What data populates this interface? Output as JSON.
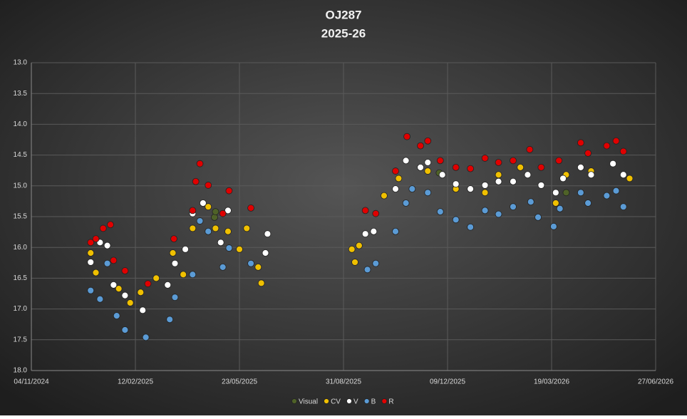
{
  "chart_data": {
    "type": "scatter",
    "title": "OJ287",
    "subtitle": "2025-26",
    "y_inverted": true,
    "grid": true,
    "legend": "bottom",
    "xlim": [
      "2024-11-04",
      "2026-06-27"
    ],
    "xticks": [
      {
        "value": "2024-11-04",
        "label": "04/11/2024"
      },
      {
        "value": "2025-02-12",
        "label": "12/02/2025"
      },
      {
        "value": "2025-05-23",
        "label": "23/05/2025"
      },
      {
        "value": "2025-08-31",
        "label": "31/08/2025"
      },
      {
        "value": "2025-12-09",
        "label": "09/12/2025"
      },
      {
        "value": "2026-03-19",
        "label": "19/03/2026"
      },
      {
        "value": "2026-06-27",
        "label": "27/06/2026"
      }
    ],
    "ylim": [
      13,
      18
    ],
    "yticks": [
      {
        "value": 13,
        "label": "13.0"
      },
      13.5,
      {
        "value": 14,
        "label": "14.0"
      },
      14.5,
      {
        "value": 15,
        "label": "15.0"
      },
      15.5,
      {
        "value": 16,
        "label": "16.0"
      },
      16.5,
      {
        "value": 17,
        "label": "17.0"
      },
      17.5,
      {
        "value": 18,
        "label": "18.0"
      }
    ],
    "series": [
      {
        "name": "Visual",
        "color": "#4f6228",
        "x": [
          "2025-04-29",
          "2025-04-30",
          "2025-12-01",
          "2026-04-02"
        ],
        "values": [
          15.51,
          15.42,
          14.79,
          15.11
        ]
      },
      {
        "name": "CV",
        "color": "#f0c000",
        "x": [
          "2024-12-31",
          "2025-01-05",
          "2025-01-27",
          "2025-02-07",
          "2025-02-17",
          "2025-03-04",
          "2025-03-20",
          "2025-03-30",
          "2025-04-08",
          "2025-04-23",
          "2025-04-30",
          "2025-05-12",
          "2025-05-23",
          "2025-05-30",
          "2025-06-10",
          "2025-06-13",
          "2025-09-08",
          "2025-09-11",
          "2025-09-15",
          "2025-10-09",
          "2025-10-23",
          "2025-11-20",
          "2025-12-17",
          "2026-01-14",
          "2026-01-27",
          "2026-02-17",
          "2026-03-23",
          "2026-04-02",
          "2026-04-26",
          "2026-06-02"
        ],
        "values": [
          16.09,
          16.41,
          16.67,
          16.9,
          16.73,
          16.5,
          16.09,
          16.44,
          15.69,
          15.34,
          15.69,
          15.74,
          16.03,
          15.69,
          16.32,
          16.58,
          16.03,
          16.24,
          15.97,
          15.16,
          14.88,
          14.76,
          15.05,
          15.11,
          14.82,
          14.7,
          15.28,
          14.82,
          14.76,
          14.88
        ]
      },
      {
        "name": "V",
        "color": "#ffffff",
        "x": [
          "2024-12-31",
          "2025-01-09",
          "2025-01-16",
          "2025-01-22",
          "2025-02-02",
          "2025-02-19",
          "2025-03-15",
          "2025-03-22",
          "2025-04-01",
          "2025-04-08",
          "2025-04-18",
          "2025-05-05",
          "2025-05-12",
          "2025-06-17",
          "2025-06-19",
          "2025-09-21",
          "2025-09-29",
          "2025-10-20",
          "2025-10-30",
          "2025-11-13",
          "2025-11-20",
          "2025-12-04",
          "2025-12-17",
          "2025-12-31",
          "2026-01-14",
          "2026-01-27",
          "2026-02-10",
          "2026-02-24",
          "2026-03-09",
          "2026-03-23",
          "2026-03-30",
          "2026-04-16",
          "2026-04-26",
          "2026-05-17",
          "2026-05-27"
        ],
        "values": [
          16.24,
          15.92,
          15.97,
          16.61,
          16.78,
          17.02,
          16.61,
          16.26,
          16.03,
          15.45,
          15.28,
          15.92,
          15.4,
          16.09,
          15.78,
          15.78,
          15.74,
          15.05,
          14.59,
          14.7,
          14.62,
          14.82,
          14.97,
          15.05,
          14.99,
          14.93,
          14.93,
          14.82,
          14.99,
          15.11,
          14.88,
          14.7,
          14.82,
          14.64,
          14.82
        ]
      },
      {
        "name": "B",
        "color": "#5b9bd5",
        "x": [
          "2024-12-31",
          "2025-01-09",
          "2025-01-16",
          "2025-01-25",
          "2025-02-02",
          "2025-02-22",
          "2025-03-17",
          "2025-03-22",
          "2025-04-08",
          "2025-04-15",
          "2025-04-23",
          "2025-05-07",
          "2025-05-13",
          "2025-06-03",
          "2025-09-23",
          "2025-10-01",
          "2025-10-20",
          "2025-10-30",
          "2025-11-05",
          "2025-11-20",
          "2025-12-02",
          "2025-12-17",
          "2025-12-31",
          "2026-01-14",
          "2026-01-27",
          "2026-02-10",
          "2026-02-27",
          "2026-03-06",
          "2026-03-21",
          "2026-03-27",
          "2026-04-16",
          "2026-04-23",
          "2026-05-11",
          "2026-05-20",
          "2026-05-27"
        ],
        "values": [
          16.7,
          16.84,
          16.26,
          17.11,
          17.34,
          17.46,
          17.17,
          16.81,
          16.44,
          15.57,
          15.74,
          16.32,
          16.01,
          16.26,
          16.36,
          16.26,
          15.74,
          15.28,
          15.05,
          15.11,
          15.42,
          15.55,
          15.67,
          15.4,
          15.46,
          15.34,
          15.26,
          15.51,
          15.66,
          15.37,
          15.11,
          15.28,
          15.16,
          15.08,
          15.34
        ]
      },
      {
        "name": "R",
        "color": "#e00000",
        "x": [
          "2024-12-31",
          "2025-01-05",
          "2025-01-12",
          "2025-01-19",
          "2025-01-22",
          "2025-02-02",
          "2025-02-24",
          "2025-03-21",
          "2025-04-08",
          "2025-04-11",
          "2025-04-15",
          "2025-04-23",
          "2025-05-07",
          "2025-05-13",
          "2025-06-03",
          "2025-09-21",
          "2025-10-01",
          "2025-10-20",
          "2025-10-31",
          "2025-11-13",
          "2025-11-20",
          "2025-12-02",
          "2025-12-17",
          "2025-12-31",
          "2026-01-14",
          "2026-01-27",
          "2026-02-10",
          "2026-02-26",
          "2026-03-09",
          "2026-03-26",
          "2026-04-16",
          "2026-04-23",
          "2026-05-11",
          "2026-05-20",
          "2026-05-27"
        ],
        "values": [
          15.92,
          15.86,
          15.69,
          15.63,
          16.21,
          16.38,
          16.59,
          15.86,
          15.4,
          14.93,
          14.64,
          14.99,
          15.45,
          15.08,
          15.36,
          15.4,
          15.45,
          14.76,
          14.2,
          14.35,
          14.27,
          14.59,
          14.7,
          14.72,
          14.55,
          14.62,
          14.59,
          14.41,
          14.7,
          14.59,
          14.3,
          14.47,
          14.35,
          14.27,
          14.44
        ]
      }
    ]
  }
}
